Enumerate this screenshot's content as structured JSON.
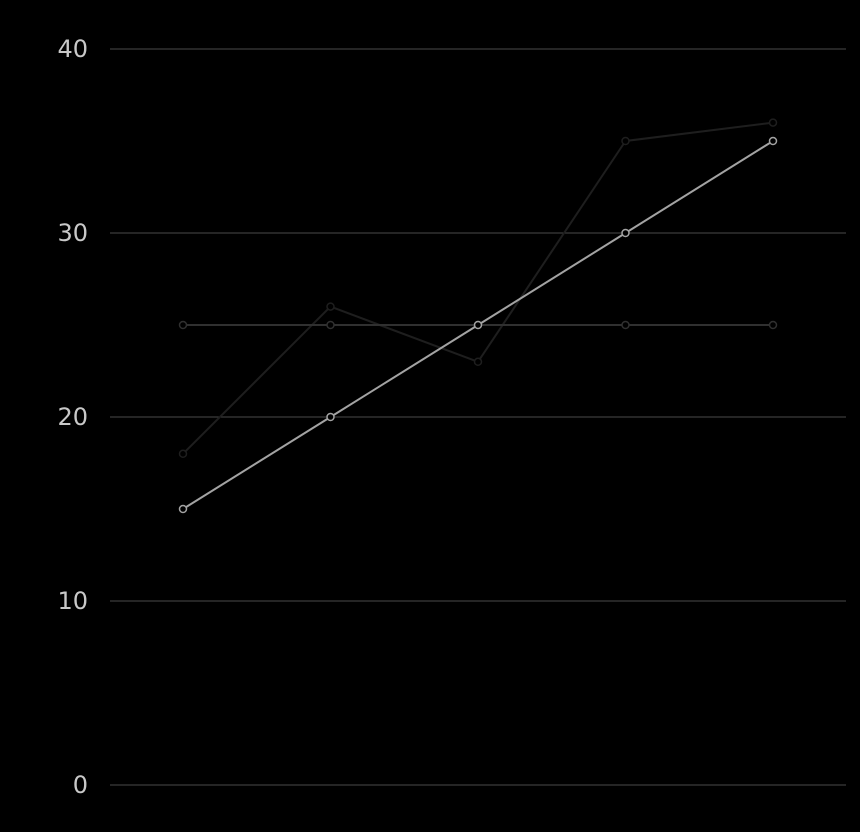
{
  "chart_data": {
    "type": "line",
    "title": "",
    "xlabel": "",
    "ylabel": "",
    "ylim": [
      0,
      40
    ],
    "y_ticks": [
      0,
      10,
      20,
      30,
      40
    ],
    "x": [
      1,
      2,
      3,
      4,
      5
    ],
    "grid": true,
    "legend": "none",
    "background_color": "#000000",
    "series": [
      {
        "color": "#1e1e1e",
        "values": [
          18,
          26,
          23,
          35,
          36
        ]
      },
      {
        "color": "#303030",
        "values": [
          25,
          25,
          25,
          25,
          25
        ]
      },
      {
        "color": "#a3a3a3",
        "values": [
          15,
          20,
          25,
          30,
          35
        ]
      }
    ]
  }
}
